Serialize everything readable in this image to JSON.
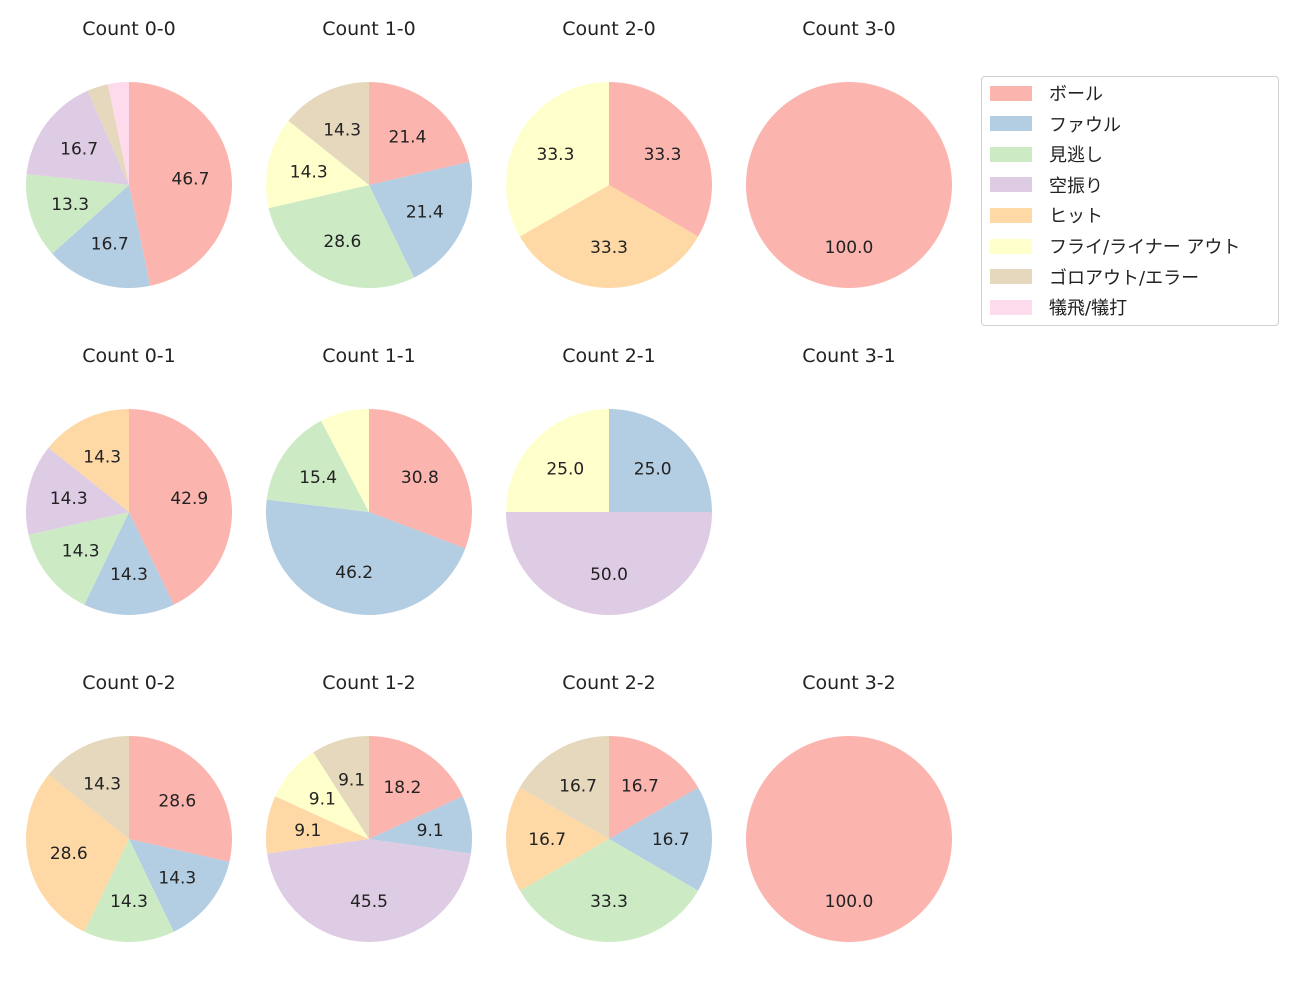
{
  "chart_data": {
    "type": "pie",
    "start_angle_deg": 90,
    "direction": "clockwise",
    "legend": {
      "placement": "top-right",
      "entries": [
        "ボール",
        "ファウル",
        "見逃し",
        "空振り",
        "ヒット",
        "フライ/ライナー アウト",
        "ゴロアウト/エラー",
        "犠飛/犠打"
      ]
    },
    "colors": [
      "#fbb4ae",
      "#b3cde3",
      "#ccebc5",
      "#decbe4",
      "#fed9a6",
      "#ffffcc",
      "#e5d8bd",
      "#fddaec"
    ],
    "charts": [
      {
        "title": "Count 0-0",
        "values": [
          46.7,
          16.7,
          13.3,
          16.7,
          0,
          0,
          3.3,
          3.3
        ],
        "labels": [
          "46.7",
          "16.7",
          "13.3",
          "16.7",
          "",
          "",
          "",
          ""
        ]
      },
      {
        "title": "Count 1-0",
        "values": [
          21.4,
          21.4,
          28.6,
          0,
          0,
          14.3,
          14.3,
          0
        ],
        "labels": [
          "21.4",
          "21.4",
          "28.6",
          "",
          "",
          "14.3",
          "14.3",
          ""
        ]
      },
      {
        "title": "Count 2-0",
        "values": [
          33.3,
          0,
          0,
          0,
          33.3,
          33.3,
          0,
          0
        ],
        "labels": [
          "33.3",
          "",
          "",
          "",
          "33.3",
          "33.3",
          "",
          ""
        ]
      },
      {
        "title": "Count 3-0",
        "values": [
          100,
          0,
          0,
          0,
          0,
          0,
          0,
          0
        ],
        "labels": [
          "100.0",
          "",
          "",
          "",
          "",
          "",
          "",
          ""
        ]
      },
      {
        "title": "Count 0-1",
        "values": [
          42.9,
          14.3,
          14.3,
          14.3,
          14.3,
          0,
          0,
          0
        ],
        "labels": [
          "42.9",
          "14.3",
          "14.3",
          "14.3",
          "14.3",
          "",
          "",
          ""
        ]
      },
      {
        "title": "Count 1-1",
        "values": [
          30.8,
          46.2,
          15.4,
          0,
          0,
          7.7,
          0,
          0
        ],
        "labels": [
          "30.8",
          "46.2",
          "15.4",
          "",
          "",
          "",
          "",
          ""
        ]
      },
      {
        "title": "Count 2-1",
        "values": [
          0,
          25.0,
          0,
          50.0,
          0,
          25.0,
          0,
          0
        ],
        "labels": [
          "",
          "25.0",
          "",
          "50.0",
          "",
          "25.0",
          "",
          ""
        ]
      },
      {
        "title": "Count 3-1",
        "values": [
          0,
          0,
          0,
          0,
          0,
          0,
          0,
          0
        ],
        "labels": [
          "",
          "",
          "",
          "",
          "",
          "",
          "",
          ""
        ]
      },
      {
        "title": "Count 0-2",
        "values": [
          28.6,
          14.3,
          14.3,
          0,
          28.6,
          0,
          14.3,
          0
        ],
        "labels": [
          "28.6",
          "14.3",
          "14.3",
          "",
          "28.6",
          "",
          "14.3",
          ""
        ]
      },
      {
        "title": "Count 1-2",
        "values": [
          18.2,
          9.1,
          0,
          45.5,
          9.1,
          9.1,
          9.1,
          0
        ],
        "labels": [
          "18.2",
          "9.1",
          "",
          "45.5",
          "9.1",
          "9.1",
          "9.1",
          ""
        ]
      },
      {
        "title": "Count 2-2",
        "values": [
          16.7,
          16.7,
          33.3,
          0,
          16.7,
          0,
          16.7,
          0
        ],
        "labels": [
          "16.7",
          "16.7",
          "33.3",
          "",
          "16.7",
          "",
          "16.7",
          ""
        ]
      },
      {
        "title": "Count 3-2",
        "values": [
          100,
          0,
          0,
          0,
          0,
          0,
          0,
          0
        ],
        "labels": [
          "100.0",
          "",
          "",
          "",
          "",
          "",
          "",
          ""
        ]
      }
    ]
  }
}
